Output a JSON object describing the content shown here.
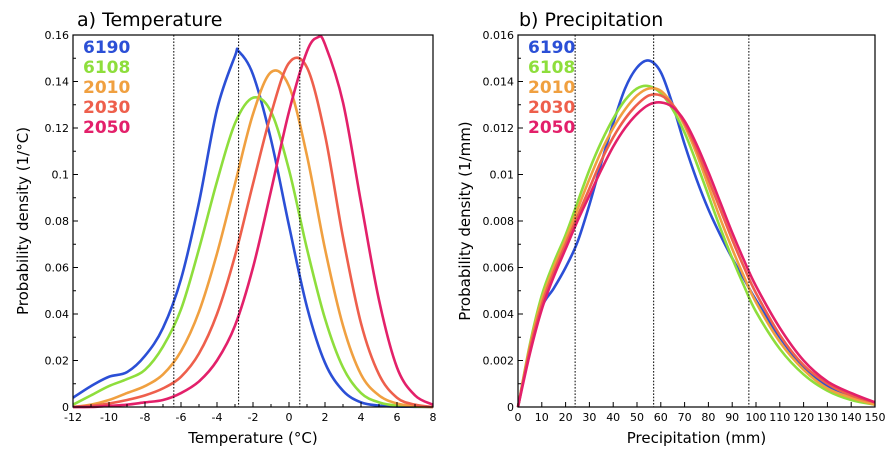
{
  "colors": {
    "6190": "#2b4fd6",
    "6108": "#8ede3c",
    "2010": "#f0a040",
    "2030": "#ee5f4c",
    "2050": "#e3206a"
  },
  "chart_data": [
    {
      "type": "line",
      "title": "a) Temperature",
      "xlabel": "Temperature (°C)",
      "ylabel": "Probability density (1/°C)",
      "xlim": [
        -12,
        8
      ],
      "ylim": [
        0,
        0.16
      ],
      "xticks": [
        -12,
        -10,
        -8,
        -6,
        -4,
        -2,
        0,
        2,
        4,
        6,
        8
      ],
      "yticks": [
        0,
        0.02,
        0.04,
        0.06,
        0.08,
        0.1,
        0.12,
        0.14,
        0.16
      ],
      "xtick_labels": [
        "-12",
        "-10",
        "-8",
        "-6",
        "-4",
        "-2",
        "0",
        "2",
        "4",
        "6",
        "8"
      ],
      "ytick_labels": [
        "0",
        "0.02",
        "0.04",
        "0.06",
        "0.08",
        "0.1",
        "0.12",
        "0.14",
        "0.16"
      ],
      "vlines": [
        -6.4,
        -2.8,
        0.6
      ],
      "legend_position": "top-left",
      "series": [
        {
          "name": "6190",
          "x": [
            -12,
            -11,
            -10,
            -9,
            -8,
            -7,
            -6,
            -5,
            -4,
            -3,
            -2.8,
            -2,
            -1,
            0,
            1,
            2,
            3,
            4,
            5,
            6,
            7,
            8
          ],
          "y": [
            0.004,
            0.009,
            0.013,
            0.015,
            0.022,
            0.034,
            0.055,
            0.088,
            0.128,
            0.151,
            0.153,
            0.143,
            0.115,
            0.078,
            0.043,
            0.019,
            0.007,
            0.002,
            0.0006,
            0.0002,
            0.0001,
            0
          ]
        },
        {
          "name": "6108",
          "x": [
            -12,
            -11,
            -10,
            -9,
            -8,
            -7,
            -6,
            -5,
            -4,
            -3,
            -2,
            -1,
            0,
            1,
            2,
            3,
            4,
            5,
            6,
            7,
            8
          ],
          "y": [
            0.001,
            0.005,
            0.009,
            0.012,
            0.016,
            0.026,
            0.042,
            0.068,
            0.097,
            0.122,
            0.133,
            0.127,
            0.102,
            0.068,
            0.038,
            0.017,
            0.006,
            0.002,
            0.0006,
            0.0002,
            0
          ]
        },
        {
          "name": "2010",
          "x": [
            -12,
            -11,
            -10,
            -9,
            -8,
            -7,
            -6,
            -5,
            -4,
            -3,
            -2,
            -1,
            0,
            1,
            2,
            3,
            4,
            5,
            6,
            7,
            8
          ],
          "y": [
            0,
            0.001,
            0.003,
            0.006,
            0.009,
            0.014,
            0.024,
            0.041,
            0.066,
            0.096,
            0.126,
            0.144,
            0.138,
            0.108,
            0.068,
            0.035,
            0.014,
            0.005,
            0.0015,
            0.0004,
            0
          ]
        },
        {
          "name": "2030",
          "x": [
            -12,
            -11,
            -10,
            -9,
            -8,
            -7,
            -6,
            -5,
            -4,
            -3,
            -2,
            -1,
            0,
            1,
            2,
            3,
            4,
            5,
            6,
            7,
            8
          ],
          "y": [
            0,
            0.0005,
            0.0015,
            0.003,
            0.005,
            0.008,
            0.013,
            0.023,
            0.04,
            0.065,
            0.096,
            0.126,
            0.148,
            0.146,
            0.117,
            0.073,
            0.036,
            0.014,
            0.004,
            0.001,
            0
          ]
        },
        {
          "name": "2050",
          "x": [
            -12,
            -11,
            -10,
            -9,
            -8,
            -7,
            -6,
            -5,
            -4,
            -3,
            -2,
            -1,
            0,
            1,
            1.6,
            2,
            3,
            4,
            5,
            6,
            7,
            8
          ],
          "y": [
            0,
            0,
            0.0005,
            0.001,
            0.002,
            0.003,
            0.006,
            0.011,
            0.02,
            0.035,
            0.06,
            0.093,
            0.127,
            0.153,
            0.159,
            0.156,
            0.131,
            0.088,
            0.046,
            0.017,
            0.005,
            0.001
          ]
        }
      ]
    },
    {
      "type": "line",
      "title": "b) Precipitation",
      "xlabel": "Precipitation (mm)",
      "ylabel": "Probability density (1/mm)",
      "xlim": [
        0,
        150
      ],
      "ylim": [
        0,
        0.016
      ],
      "xticks": [
        0,
        10,
        20,
        30,
        40,
        50,
        60,
        70,
        80,
        90,
        100,
        110,
        120,
        130,
        140,
        150
      ],
      "yticks": [
        0,
        0.002,
        0.004,
        0.006,
        0.008,
        0.01,
        0.012,
        0.014,
        0.016
      ],
      "xtick_labels": [
        "0",
        "10",
        "20",
        "30",
        "40",
        "50",
        "60",
        "70",
        "80",
        "90",
        "100",
        "110",
        "120",
        "130",
        "140",
        "150"
      ],
      "ytick_labels": [
        "0",
        "0.002",
        "0.004",
        "0.006",
        "0.008",
        "0.01",
        "0.012",
        "0.014",
        "0.016"
      ],
      "vlines": [
        24,
        57,
        97
      ],
      "legend_position": "top-left",
      "series": [
        {
          "name": "6190",
          "x": [
            0,
            5,
            10,
            15,
            20,
            25,
            30,
            35,
            40,
            45,
            50,
            55,
            60,
            65,
            70,
            75,
            80,
            85,
            90,
            95,
            100,
            110,
            120,
            130,
            140,
            150
          ],
          "y": [
            0,
            0.0025,
            0.0043,
            0.0051,
            0.006,
            0.0071,
            0.0087,
            0.0105,
            0.0122,
            0.0137,
            0.0146,
            0.0149,
            0.0144,
            0.013,
            0.0113,
            0.0098,
            0.0085,
            0.0074,
            0.0064,
            0.0055,
            0.0046,
            0.003,
            0.0017,
            0.0009,
            0.0004,
            0.0001
          ]
        },
        {
          "name": "6108",
          "x": [
            0,
            5,
            10,
            15,
            20,
            25,
            30,
            35,
            40,
            45,
            50,
            55,
            60,
            65,
            70,
            75,
            80,
            85,
            90,
            95,
            100,
            110,
            120,
            130,
            140,
            150
          ],
          "y": [
            0,
            0.0027,
            0.0048,
            0.0062,
            0.0074,
            0.0088,
            0.0102,
            0.0114,
            0.0124,
            0.0132,
            0.0137,
            0.0138,
            0.0135,
            0.0128,
            0.0118,
            0.0105,
            0.0091,
            0.0077,
            0.0064,
            0.0052,
            0.0041,
            0.0025,
            0.0014,
            0.0007,
            0.0003,
            0.0001
          ]
        },
        {
          "name": "2010",
          "x": [
            0,
            5,
            10,
            15,
            20,
            25,
            30,
            35,
            40,
            45,
            50,
            55,
            60,
            65,
            70,
            75,
            80,
            85,
            90,
            95,
            100,
            110,
            120,
            130,
            140,
            150
          ],
          "y": [
            0,
            0.0026,
            0.0046,
            0.006,
            0.0072,
            0.0085,
            0.0098,
            0.011,
            0.012,
            0.0128,
            0.0134,
            0.0137,
            0.0136,
            0.013,
            0.0121,
            0.0109,
            0.0095,
            0.0081,
            0.0068,
            0.0056,
            0.0045,
            0.0028,
            0.0016,
            0.0008,
            0.0004,
            0.0001
          ]
        },
        {
          "name": "2030",
          "x": [
            0,
            5,
            10,
            15,
            20,
            25,
            30,
            35,
            40,
            45,
            50,
            55,
            60,
            65,
            70,
            75,
            80,
            85,
            90,
            95,
            100,
            110,
            120,
            130,
            140,
            150
          ],
          "y": [
            0,
            0.0025,
            0.0044,
            0.0058,
            0.007,
            0.0082,
            0.0094,
            0.0106,
            0.0116,
            0.0124,
            0.013,
            0.0134,
            0.0134,
            0.013,
            0.0122,
            0.0111,
            0.0098,
            0.0085,
            0.0072,
            0.006,
            0.0049,
            0.0031,
            0.0018,
            0.001,
            0.0005,
            0.0002
          ]
        },
        {
          "name": "2050",
          "x": [
            0,
            5,
            10,
            15,
            20,
            25,
            30,
            35,
            40,
            45,
            50,
            55,
            60,
            65,
            70,
            75,
            80,
            85,
            90,
            95,
            100,
            110,
            120,
            130,
            140,
            150
          ],
          "y": [
            0,
            0.0023,
            0.0042,
            0.0056,
            0.0068,
            0.008,
            0.0091,
            0.0102,
            0.0112,
            0.012,
            0.0126,
            0.013,
            0.0131,
            0.0129,
            0.0123,
            0.0113,
            0.0101,
            0.0088,
            0.0075,
            0.0063,
            0.0052,
            0.0034,
            0.002,
            0.0011,
            0.0006,
            0.0002
          ]
        }
      ]
    }
  ]
}
